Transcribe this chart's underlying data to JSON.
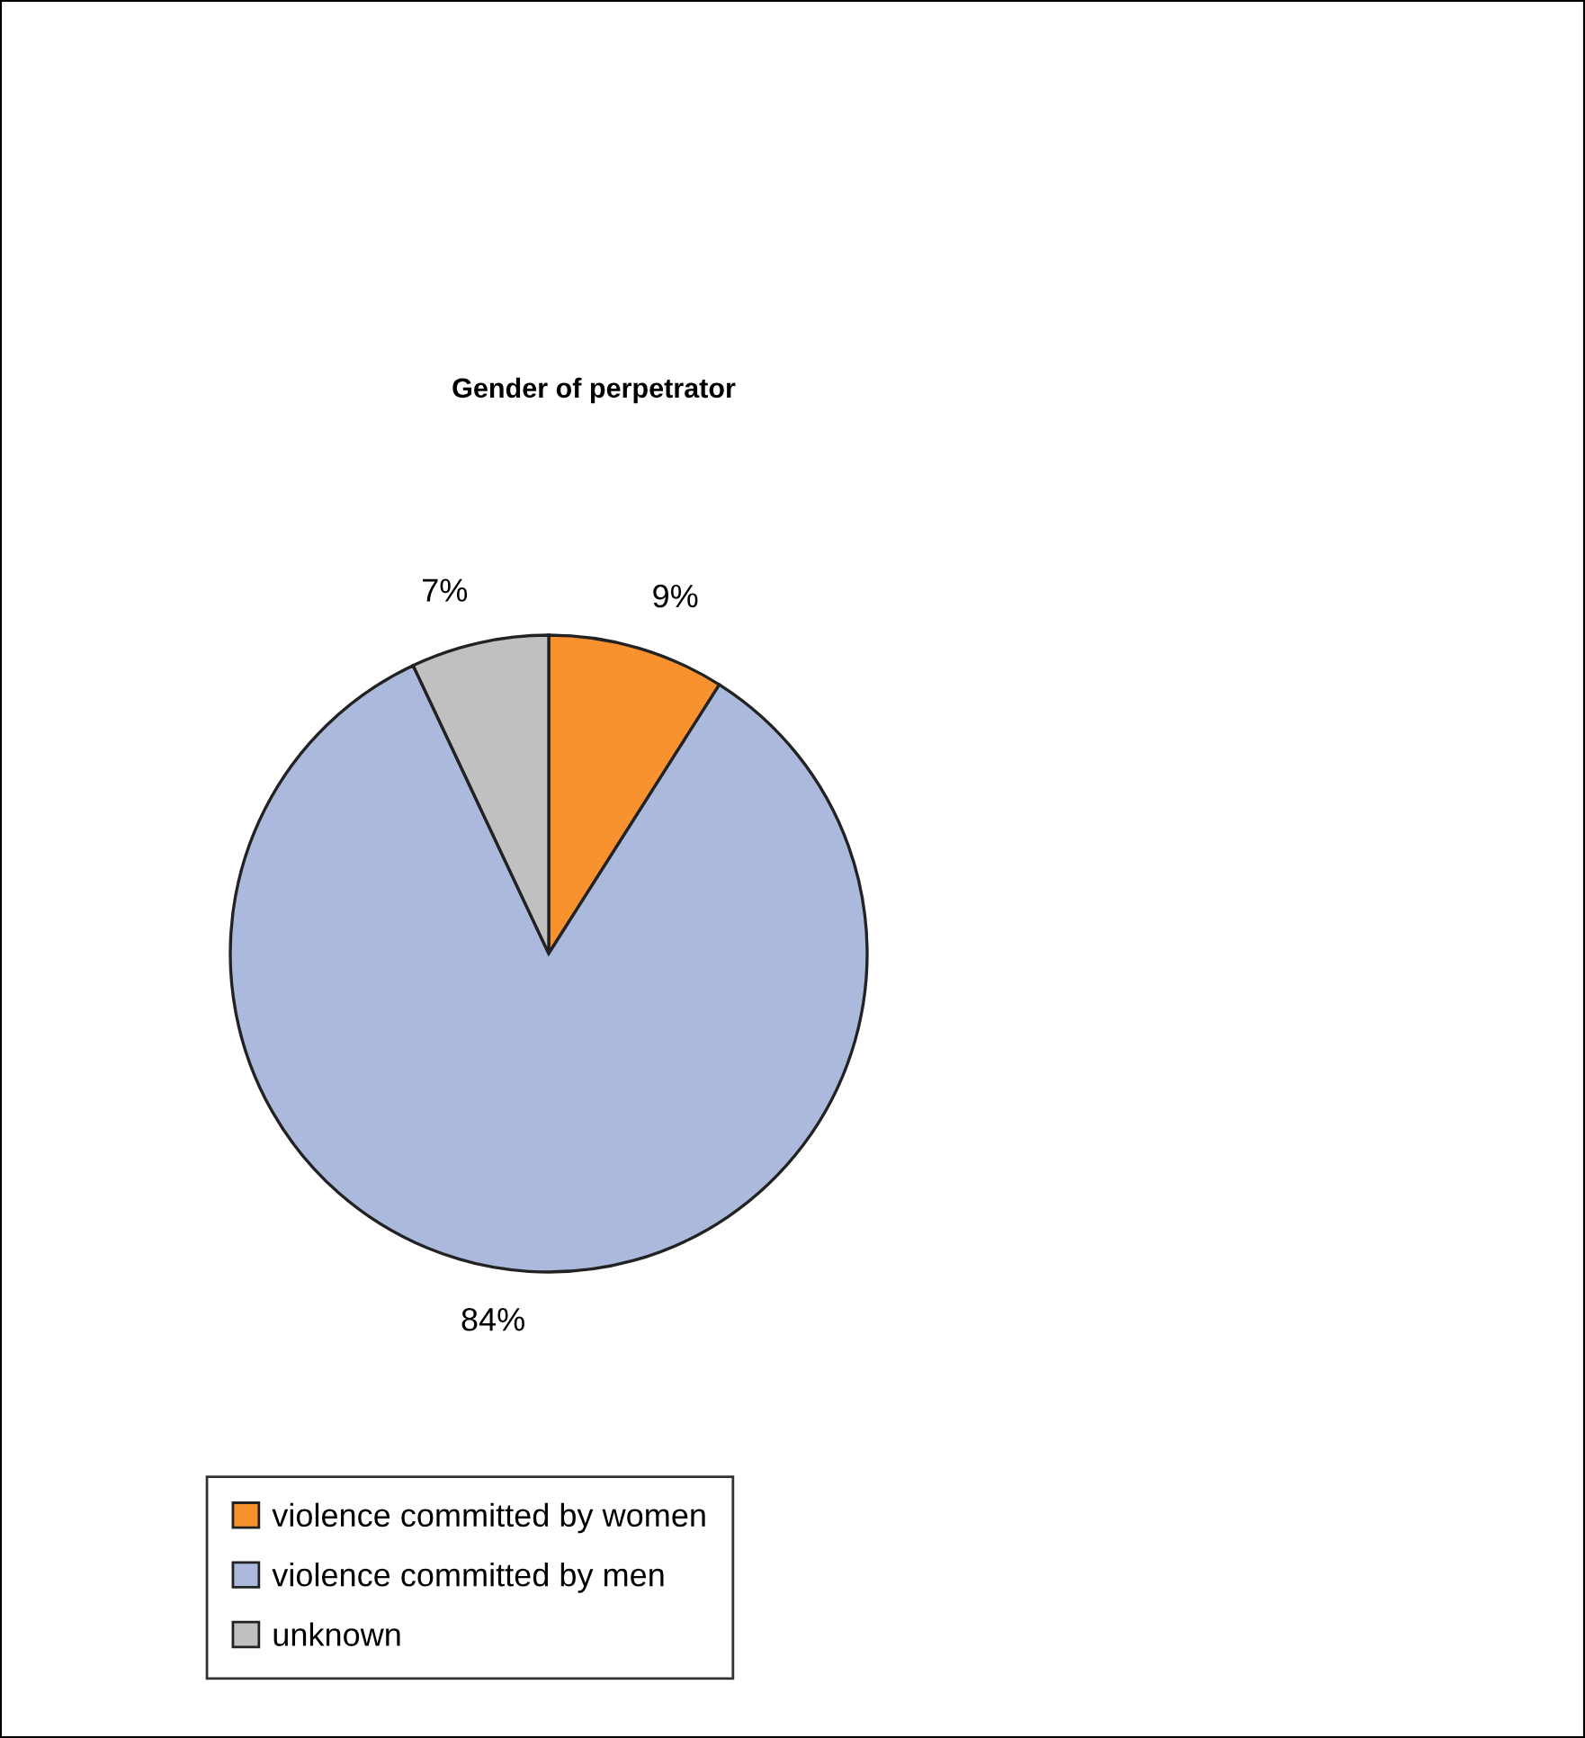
{
  "chart_data": {
    "type": "pie",
    "title": "Gender of perpetrator",
    "categories": [
      "violence committed by women",
      "violence committed by men",
      "unknown"
    ],
    "values": [
      9,
      84,
      7
    ],
    "colors": [
      "#f7922e",
      "#aab9dc",
      "#c0c0c0"
    ],
    "value_labels": [
      "9%",
      "84%",
      "7%"
    ],
    "legend": "bottom left"
  }
}
